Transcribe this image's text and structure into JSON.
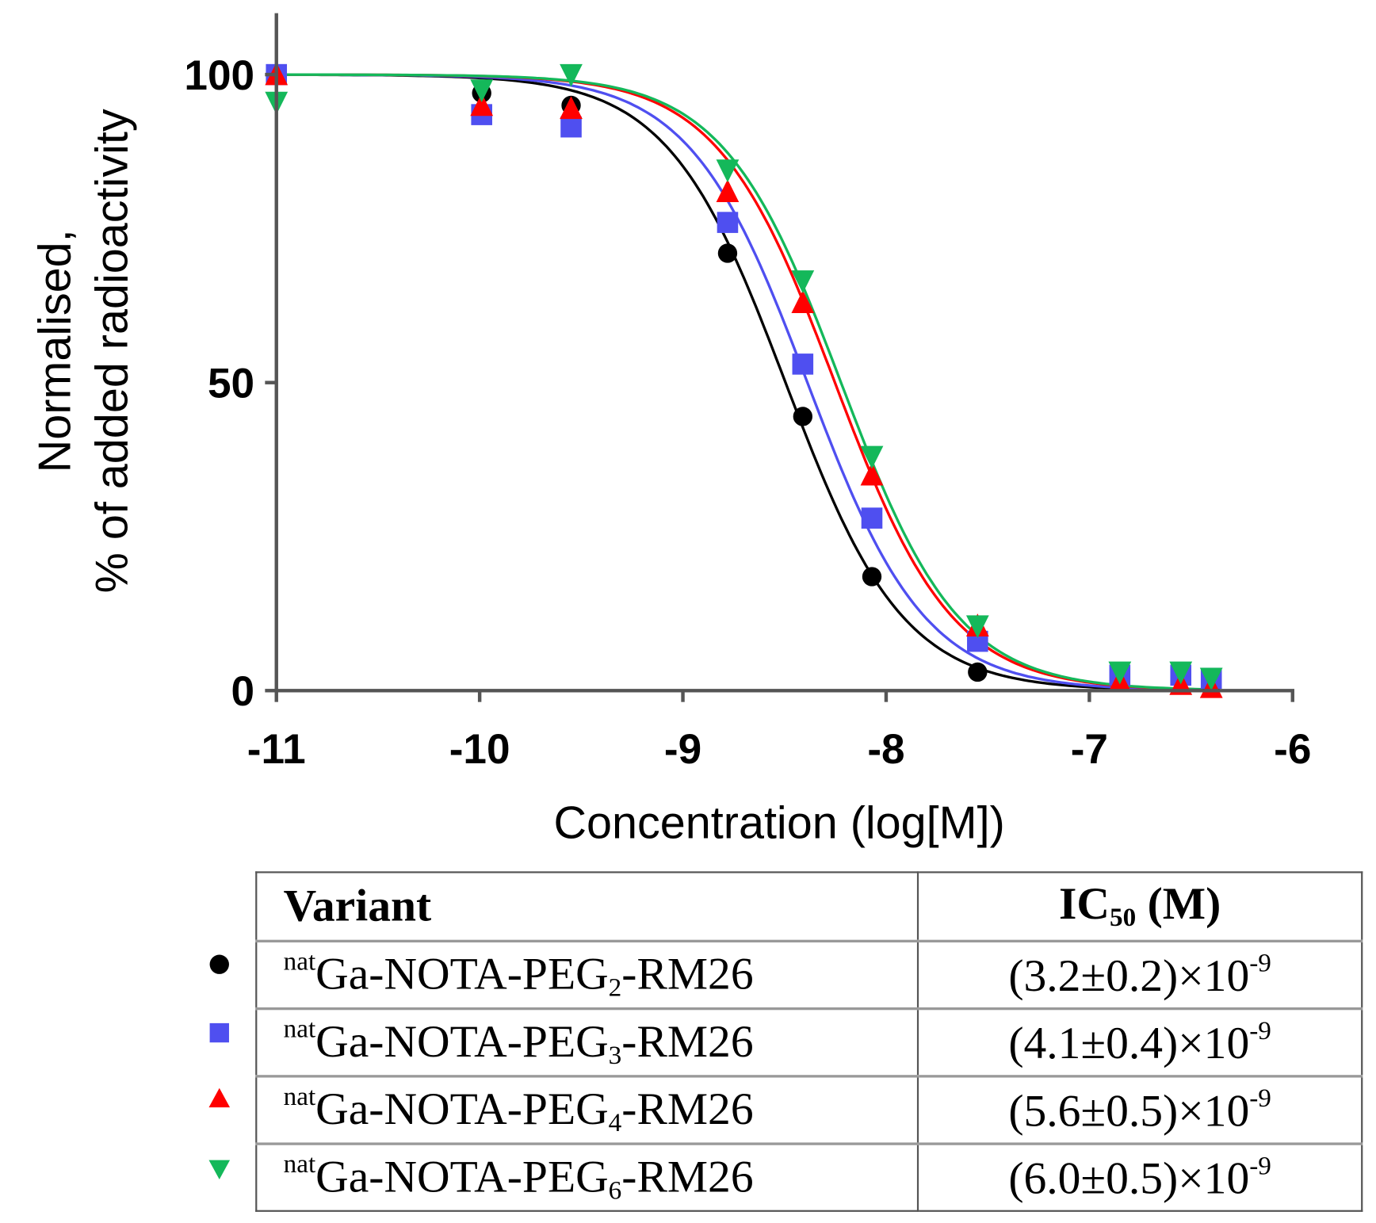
{
  "chart_data": {
    "type": "scatter",
    "title": "",
    "xlabel": "Concentration (log[M])",
    "ylabel_lines": [
      "Normalised,",
      "% of added radioactivity"
    ],
    "xlim": [
      -11,
      -6
    ],
    "ylim": [
      0,
      100
    ],
    "x_ticks": [
      "-11",
      "-10",
      "-9",
      "-8",
      "-7",
      "-6"
    ],
    "y_ticks": [
      "0",
      "50",
      "100"
    ],
    "grid": false,
    "x": [
      -11,
      -9.99,
      -9.55,
      -8.78,
      -8.41,
      -8.07,
      -7.55,
      -6.85,
      -6.55,
      -6.4
    ],
    "fit": "sigmoidal dose-response (one-site competition), top 100, bottom 0",
    "hill_slope": -1.5,
    "series": [
      {
        "name": "natGa-NOTA-PEG2-RM26",
        "color": "#000000",
        "marker": "circle",
        "ic50": 3.2e-09,
        "values": [
          100,
          97,
          95,
          71,
          44.5,
          18.5,
          3,
          2,
          2,
          1
        ]
      },
      {
        "name": "natGa-NOTA-PEG3-RM26",
        "color": "#4f4ff0",
        "marker": "square",
        "ic50": 4.1e-09,
        "values": [
          100,
          93.5,
          91.5,
          76,
          53,
          28,
          8,
          2.5,
          2.5,
          2
        ]
      },
      {
        "name": "natGa-NOTA-PEG4-RM26",
        "color": "#ff0000",
        "marker": "triangle-up",
        "ic50": 5.6e-09,
        "values": [
          100,
          95,
          94.5,
          81,
          63,
          35,
          10.5,
          1.5,
          1,
          0.5
        ]
      },
      {
        "name": "natGa-NOTA-PEG6-RM26",
        "color": "#14b85a",
        "marker": "triangle-down",
        "ic50": 6e-09,
        "values": [
          95.5,
          97.5,
          100,
          84.5,
          66.5,
          38,
          10.5,
          3,
          3,
          2
        ]
      }
    ]
  },
  "table": {
    "header_variant": "Variant",
    "header_ic50_main": "IC",
    "header_ic50_sub": "50",
    "header_ic50_unit": " (M)",
    "rows": [
      {
        "sup": "nat",
        "pre": "Ga-NOTA-PEG",
        "sub": "2",
        "post": "-RM26",
        "ic50": "(3.2±0.2)×10",
        "exp": "-9"
      },
      {
        "sup": "nat",
        "pre": "Ga-NOTA-PEG",
        "sub": "3",
        "post": "-RM26",
        "ic50": "(4.1±0.4)×10",
        "exp": "-9"
      },
      {
        "sup": "nat",
        "pre": "Ga-NOTA-PEG",
        "sub": "4",
        "post": "-RM26",
        "ic50": "(5.6±0.5)×10",
        "exp": "-9"
      },
      {
        "sup": "nat",
        "pre": "Ga-NOTA-PEG",
        "sub": "6",
        "post": "-RM26",
        "ic50": "(6.0±0.5)×10",
        "exp": "-9"
      }
    ]
  }
}
